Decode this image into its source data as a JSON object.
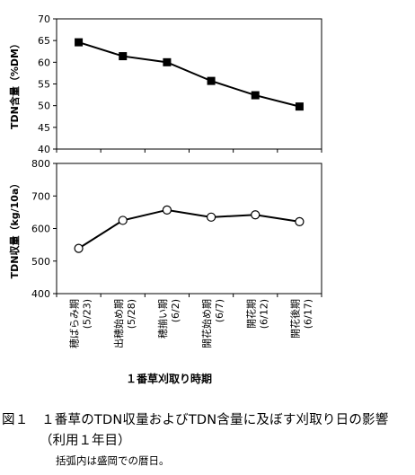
{
  "chart_data": [
    {
      "type": "line",
      "ylabel": "TDN含量（%DM）",
      "ylim": [
        40,
        70
      ],
      "yticks": [
        40,
        45,
        50,
        55,
        60,
        65,
        70
      ],
      "marker": "filled-square",
      "categories": [
        "穂ばらみ期\n(5/23)",
        "出穂始め期\n(5/28)",
        "穂揃い期\n(6/2)",
        "開花始め期\n(6/7)",
        "開花期\n(6/12)",
        "開花後期\n(6/17)"
      ],
      "values": [
        64.6,
        61.4,
        60.0,
        55.7,
        52.4,
        49.8
      ]
    },
    {
      "type": "line",
      "ylabel": "TDN収量（kg/10a）",
      "ylim": [
        400,
        800
      ],
      "yticks": [
        400,
        500,
        600,
        700,
        800
      ],
      "marker": "open-circle",
      "xlabel": "１番草刈取り時期",
      "categories": [
        "穂ばらみ期\n(5/23)",
        "出穂始め期\n(5/28)",
        "穂揃い期\n(6/2)",
        "開花始め期\n(6/7)",
        "開花期\n(6/12)",
        "開花後期\n(6/17)"
      ],
      "values": [
        539,
        625,
        657,
        635,
        642,
        621
      ]
    }
  ],
  "caption": {
    "line1": "図１　１番草のTDN収量およびTDN含量に及ぼす刈取り日の影響",
    "line2": "（利用１年目）",
    "note": "括弧内は盛岡での暦日。"
  }
}
